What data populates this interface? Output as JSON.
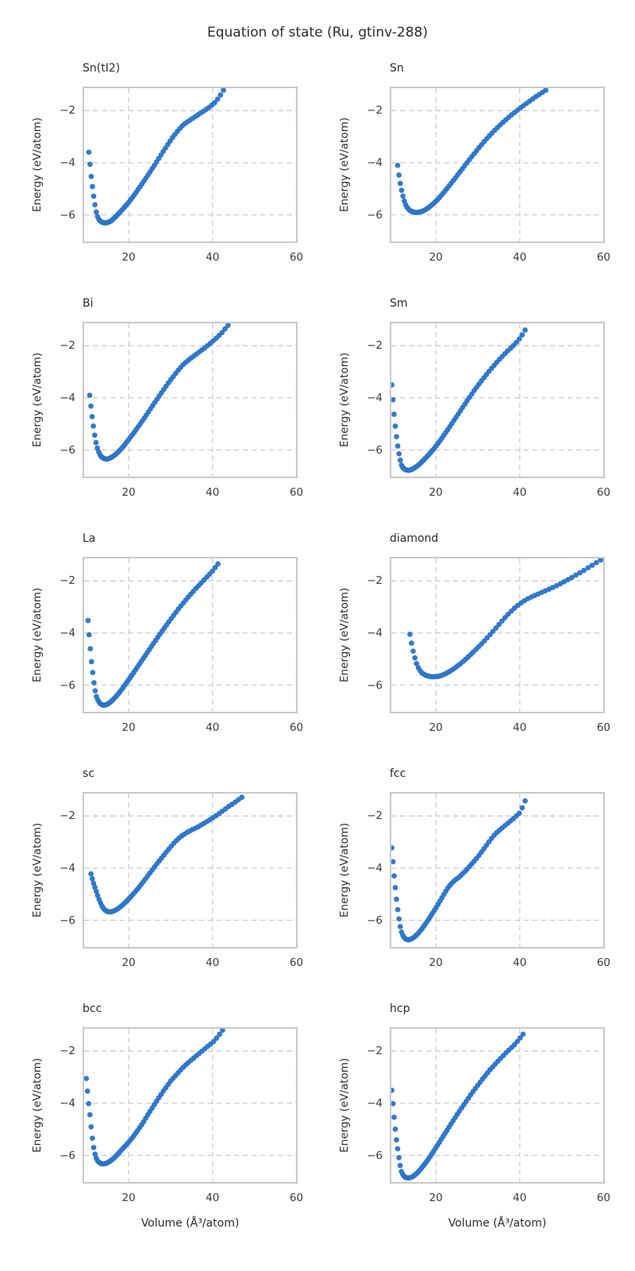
{
  "chart_data": {
    "type": "scatter",
    "suptitle": "Equation of state (Ru, gtinv-288)",
    "xlabel": "Volume (Å³/atom)",
    "ylabel": "Energy (eV/atom)",
    "xlim": [
      9.0,
      60.3
    ],
    "ylim": [
      -7.08,
      -1.08
    ],
    "xticks": [
      20,
      40,
      60
    ],
    "xtick_labels": [
      "20",
      "40",
      "60"
    ],
    "yticks": [
      -2,
      -4,
      -6
    ],
    "ytick_labels": [
      "−2",
      "−4",
      "−6"
    ],
    "grid": "dashed",
    "legend": "none",
    "layout": "5 rows x 2 cols, shared axes ranges",
    "colors": {
      "marker": "#2e7ad2",
      "marker_edge": "#1d5fa8",
      "grid": "#cccccc",
      "frame": "#c9c9c9",
      "text": "#262626",
      "background": "#ffffff"
    },
    "panels": [
      {
        "title": "Sn(tI2)",
        "points": [
          [
            10.5,
            -3.6
          ],
          [
            11.05,
            -4.5
          ],
          [
            11.5,
            -5.1
          ],
          [
            11.85,
            -5.5
          ],
          [
            12.1,
            -5.75
          ],
          [
            12.35,
            -5.95
          ],
          [
            12.7,
            -6.12
          ],
          [
            13.1,
            -6.22
          ],
          [
            13.6,
            -6.28
          ],
          [
            14.2,
            -6.31
          ],
          [
            14.9,
            -6.3
          ],
          [
            15.7,
            -6.24
          ],
          [
            16.6,
            -6.12
          ],
          [
            17.6,
            -5.95
          ],
          [
            18.8,
            -5.74
          ],
          [
            20,
            -5.52
          ],
          [
            21.5,
            -5.2
          ],
          [
            23,
            -4.85
          ],
          [
            25,
            -4.38
          ],
          [
            27,
            -3.88
          ],
          [
            29,
            -3.38
          ],
          [
            30.5,
            -3.02
          ],
          [
            32,
            -2.72
          ],
          [
            33.2,
            -2.52
          ],
          [
            34.5,
            -2.38
          ],
          [
            36,
            -2.22
          ],
          [
            37.5,
            -2.06
          ],
          [
            39,
            -1.9
          ],
          [
            40.5,
            -1.7
          ],
          [
            41.6,
            -1.48
          ],
          [
            42.6,
            -1.22
          ]
        ]
      },
      {
        "title": "Sn",
        "points": [
          [
            10.9,
            -4.1
          ],
          [
            11.35,
            -4.65
          ],
          [
            11.75,
            -5.0
          ],
          [
            12.1,
            -5.25
          ],
          [
            12.5,
            -5.48
          ],
          [
            12.9,
            -5.65
          ],
          [
            13.35,
            -5.76
          ],
          [
            13.9,
            -5.84
          ],
          [
            14.6,
            -5.89
          ],
          [
            15.4,
            -5.91
          ],
          [
            16.2,
            -5.89
          ],
          [
            17.1,
            -5.84
          ],
          [
            18.1,
            -5.74
          ],
          [
            19.2,
            -5.6
          ],
          [
            20.5,
            -5.4
          ],
          [
            22,
            -5.12
          ],
          [
            24,
            -4.72
          ],
          [
            26,
            -4.3
          ],
          [
            28,
            -3.88
          ],
          [
            30,
            -3.48
          ],
          [
            32,
            -3.1
          ],
          [
            34,
            -2.76
          ],
          [
            36,
            -2.45
          ],
          [
            38,
            -2.17
          ],
          [
            40,
            -1.92
          ],
          [
            42,
            -1.68
          ],
          [
            44,
            -1.45
          ],
          [
            46.2,
            -1.22
          ]
        ]
      },
      {
        "title": "Bi",
        "points": [
          [
            10.7,
            -3.9
          ],
          [
            11.2,
            -4.62
          ],
          [
            11.6,
            -5.1
          ],
          [
            11.95,
            -5.5
          ],
          [
            12.3,
            -5.8
          ],
          [
            12.65,
            -6.0
          ],
          [
            13.05,
            -6.15
          ],
          [
            13.5,
            -6.26
          ],
          [
            14.1,
            -6.33
          ],
          [
            14.8,
            -6.35
          ],
          [
            15.6,
            -6.31
          ],
          [
            16.5,
            -6.22
          ],
          [
            17.6,
            -6.06
          ],
          [
            18.8,
            -5.85
          ],
          [
            20,
            -5.6
          ],
          [
            21.5,
            -5.28
          ],
          [
            23.5,
            -4.83
          ],
          [
            25.5,
            -4.35
          ],
          [
            27.5,
            -3.88
          ],
          [
            29.5,
            -3.42
          ],
          [
            31.5,
            -3.0
          ],
          [
            33,
            -2.72
          ],
          [
            34.5,
            -2.52
          ],
          [
            36,
            -2.34
          ],
          [
            37.5,
            -2.16
          ],
          [
            39,
            -1.97
          ],
          [
            40.5,
            -1.77
          ],
          [
            42,
            -1.54
          ],
          [
            43.7,
            -1.22
          ]
        ]
      },
      {
        "title": "Sm",
        "points": [
          [
            9.5,
            -3.5
          ],
          [
            10.0,
            -4.55
          ],
          [
            10.4,
            -5.2
          ],
          [
            10.8,
            -5.73
          ],
          [
            11.1,
            -6.05
          ],
          [
            11.45,
            -6.35
          ],
          [
            11.75,
            -6.56
          ],
          [
            12.15,
            -6.68
          ],
          [
            12.7,
            -6.75
          ],
          [
            13.4,
            -6.78
          ],
          [
            14.2,
            -6.75
          ],
          [
            15.0,
            -6.68
          ],
          [
            15.9,
            -6.57
          ],
          [
            17.0,
            -6.4
          ],
          [
            18.3,
            -6.18
          ],
          [
            19.7,
            -5.92
          ],
          [
            21.2,
            -5.6
          ],
          [
            23,
            -5.18
          ],
          [
            25,
            -4.7
          ],
          [
            27,
            -4.22
          ],
          [
            29,
            -3.75
          ],
          [
            31,
            -3.32
          ],
          [
            33,
            -2.92
          ],
          [
            35,
            -2.55
          ],
          [
            37,
            -2.22
          ],
          [
            38.8,
            -1.95
          ],
          [
            40.2,
            -1.68
          ],
          [
            41.3,
            -1.4
          ]
        ]
      },
      {
        "title": "La",
        "points": [
          [
            10.3,
            -3.52
          ],
          [
            10.75,
            -4.42
          ],
          [
            11.1,
            -5.05
          ],
          [
            11.45,
            -5.55
          ],
          [
            11.75,
            -5.95
          ],
          [
            12.05,
            -6.25
          ],
          [
            12.35,
            -6.46
          ],
          [
            12.8,
            -6.62
          ],
          [
            13.3,
            -6.72
          ],
          [
            13.9,
            -6.77
          ],
          [
            14.7,
            -6.75
          ],
          [
            15.5,
            -6.67
          ],
          [
            16.5,
            -6.52
          ],
          [
            17.7,
            -6.3
          ],
          [
            19,
            -6.02
          ],
          [
            20.5,
            -5.68
          ],
          [
            22.2,
            -5.28
          ],
          [
            24,
            -4.85
          ],
          [
            26,
            -4.38
          ],
          [
            28,
            -3.92
          ],
          [
            30,
            -3.48
          ],
          [
            32,
            -3.05
          ],
          [
            34,
            -2.66
          ],
          [
            36,
            -2.3
          ],
          [
            38,
            -1.96
          ],
          [
            39.8,
            -1.66
          ],
          [
            41.3,
            -1.35
          ]
        ]
      },
      {
        "title": "diamond",
        "points": [
          [
            13.8,
            -4.05
          ],
          [
            14.4,
            -4.57
          ],
          [
            14.9,
            -4.9
          ],
          [
            15.4,
            -5.17
          ],
          [
            15.95,
            -5.38
          ],
          [
            16.6,
            -5.52
          ],
          [
            17.4,
            -5.61
          ],
          [
            18.3,
            -5.66
          ],
          [
            19.3,
            -5.68
          ],
          [
            20.4,
            -5.67
          ],
          [
            21.5,
            -5.62
          ],
          [
            22.8,
            -5.52
          ],
          [
            24.2,
            -5.38
          ],
          [
            25.7,
            -5.2
          ],
          [
            27.3,
            -4.98
          ],
          [
            29,
            -4.72
          ],
          [
            31,
            -4.4
          ],
          [
            33,
            -4.05
          ],
          [
            35,
            -3.68
          ],
          [
            37,
            -3.32
          ],
          [
            38.5,
            -3.08
          ],
          [
            40,
            -2.88
          ],
          [
            41.5,
            -2.72
          ],
          [
            43,
            -2.6
          ],
          [
            45,
            -2.46
          ],
          [
            47,
            -2.32
          ],
          [
            49,
            -2.17
          ],
          [
            51,
            -2.0
          ],
          [
            53,
            -1.82
          ],
          [
            55,
            -1.63
          ],
          [
            57,
            -1.43
          ],
          [
            59.3,
            -1.2
          ]
        ]
      },
      {
        "title": "sc",
        "points": [
          [
            11.0,
            -4.22
          ],
          [
            11.5,
            -4.52
          ],
          [
            12.0,
            -4.76
          ],
          [
            12.45,
            -4.98
          ],
          [
            12.95,
            -5.2
          ],
          [
            13.4,
            -5.38
          ],
          [
            13.9,
            -5.53
          ],
          [
            14.5,
            -5.63
          ],
          [
            15.2,
            -5.68
          ],
          [
            16.0,
            -5.67
          ],
          [
            16.9,
            -5.61
          ],
          [
            17.9,
            -5.5
          ],
          [
            19,
            -5.35
          ],
          [
            20.2,
            -5.15
          ],
          [
            21.6,
            -4.9
          ],
          [
            23.2,
            -4.58
          ],
          [
            25,
            -4.2
          ],
          [
            27,
            -3.78
          ],
          [
            29,
            -3.38
          ],
          [
            31,
            -3.0
          ],
          [
            32.5,
            -2.78
          ],
          [
            33.8,
            -2.64
          ],
          [
            35,
            -2.54
          ],
          [
            36.5,
            -2.42
          ],
          [
            38,
            -2.28
          ],
          [
            39.5,
            -2.13
          ],
          [
            41,
            -1.97
          ],
          [
            42.5,
            -1.8
          ],
          [
            44,
            -1.62
          ],
          [
            45.5,
            -1.46
          ],
          [
            47,
            -1.28
          ]
        ]
      },
      {
        "title": "fcc",
        "points": [
          [
            9.5,
            -3.22
          ],
          [
            10.05,
            -4.3
          ],
          [
            10.55,
            -5.1
          ],
          [
            10.95,
            -5.65
          ],
          [
            11.3,
            -6.05
          ],
          [
            11.6,
            -6.32
          ],
          [
            11.9,
            -6.5
          ],
          [
            12.3,
            -6.63
          ],
          [
            12.8,
            -6.72
          ],
          [
            13.4,
            -6.75
          ],
          [
            14.1,
            -6.72
          ],
          [
            14.9,
            -6.64
          ],
          [
            15.8,
            -6.5
          ],
          [
            16.8,
            -6.3
          ],
          [
            17.9,
            -6.05
          ],
          [
            19,
            -5.78
          ],
          [
            20.2,
            -5.48
          ],
          [
            21.5,
            -5.12
          ],
          [
            22.5,
            -4.85
          ],
          [
            23.5,
            -4.62
          ],
          [
            24.5,
            -4.47
          ],
          [
            25.5,
            -4.35
          ],
          [
            27,
            -4.12
          ],
          [
            28.5,
            -3.85
          ],
          [
            30,
            -3.57
          ],
          [
            31.5,
            -3.25
          ],
          [
            33,
            -2.92
          ],
          [
            34.2,
            -2.68
          ],
          [
            35.5,
            -2.5
          ],
          [
            37,
            -2.3
          ],
          [
            38.5,
            -2.1
          ],
          [
            40,
            -1.88
          ],
          [
            40.7,
            -1.65
          ],
          [
            41.3,
            -1.42
          ]
        ]
      },
      {
        "title": "bcc",
        "points": [
          [
            9.9,
            -3.05
          ],
          [
            10.4,
            -3.92
          ],
          [
            10.85,
            -4.58
          ],
          [
            11.2,
            -5.15
          ],
          [
            11.55,
            -5.6
          ],
          [
            11.85,
            -5.88
          ],
          [
            12.2,
            -6.08
          ],
          [
            12.65,
            -6.22
          ],
          [
            13.2,
            -6.3
          ],
          [
            13.9,
            -6.33
          ],
          [
            14.7,
            -6.3
          ],
          [
            15.5,
            -6.23
          ],
          [
            16.4,
            -6.12
          ],
          [
            17.4,
            -5.95
          ],
          [
            18.5,
            -5.75
          ],
          [
            19.5,
            -5.58
          ],
          [
            20.5,
            -5.4
          ],
          [
            21.8,
            -5.12
          ],
          [
            23.2,
            -4.8
          ],
          [
            25,
            -4.33
          ],
          [
            26.8,
            -3.88
          ],
          [
            28.5,
            -3.48
          ],
          [
            30,
            -3.15
          ],
          [
            31.5,
            -2.88
          ],
          [
            33,
            -2.62
          ],
          [
            34.5,
            -2.4
          ],
          [
            36,
            -2.2
          ],
          [
            37.5,
            -2.0
          ],
          [
            39,
            -1.8
          ],
          [
            40.5,
            -1.6
          ],
          [
            42.4,
            -1.2
          ]
        ]
      },
      {
        "title": "hcp",
        "points": [
          [
            9.5,
            -3.5
          ],
          [
            10.05,
            -4.55
          ],
          [
            10.5,
            -5.28
          ],
          [
            10.9,
            -5.75
          ],
          [
            11.2,
            -6.1
          ],
          [
            11.5,
            -6.4
          ],
          [
            11.8,
            -6.62
          ],
          [
            12.2,
            -6.76
          ],
          [
            12.75,
            -6.84
          ],
          [
            13.5,
            -6.87
          ],
          [
            14.3,
            -6.83
          ],
          [
            15.1,
            -6.74
          ],
          [
            16.1,
            -6.58
          ],
          [
            17.2,
            -6.36
          ],
          [
            18.4,
            -6.1
          ],
          [
            19.7,
            -5.78
          ],
          [
            21.2,
            -5.4
          ],
          [
            23,
            -4.95
          ],
          [
            25,
            -4.45
          ],
          [
            27,
            -3.98
          ],
          [
            29,
            -3.52
          ],
          [
            31,
            -3.1
          ],
          [
            33,
            -2.7
          ],
          [
            35,
            -2.35
          ],
          [
            37,
            -2.02
          ],
          [
            39,
            -1.72
          ],
          [
            40.8,
            -1.35
          ]
        ]
      }
    ]
  }
}
